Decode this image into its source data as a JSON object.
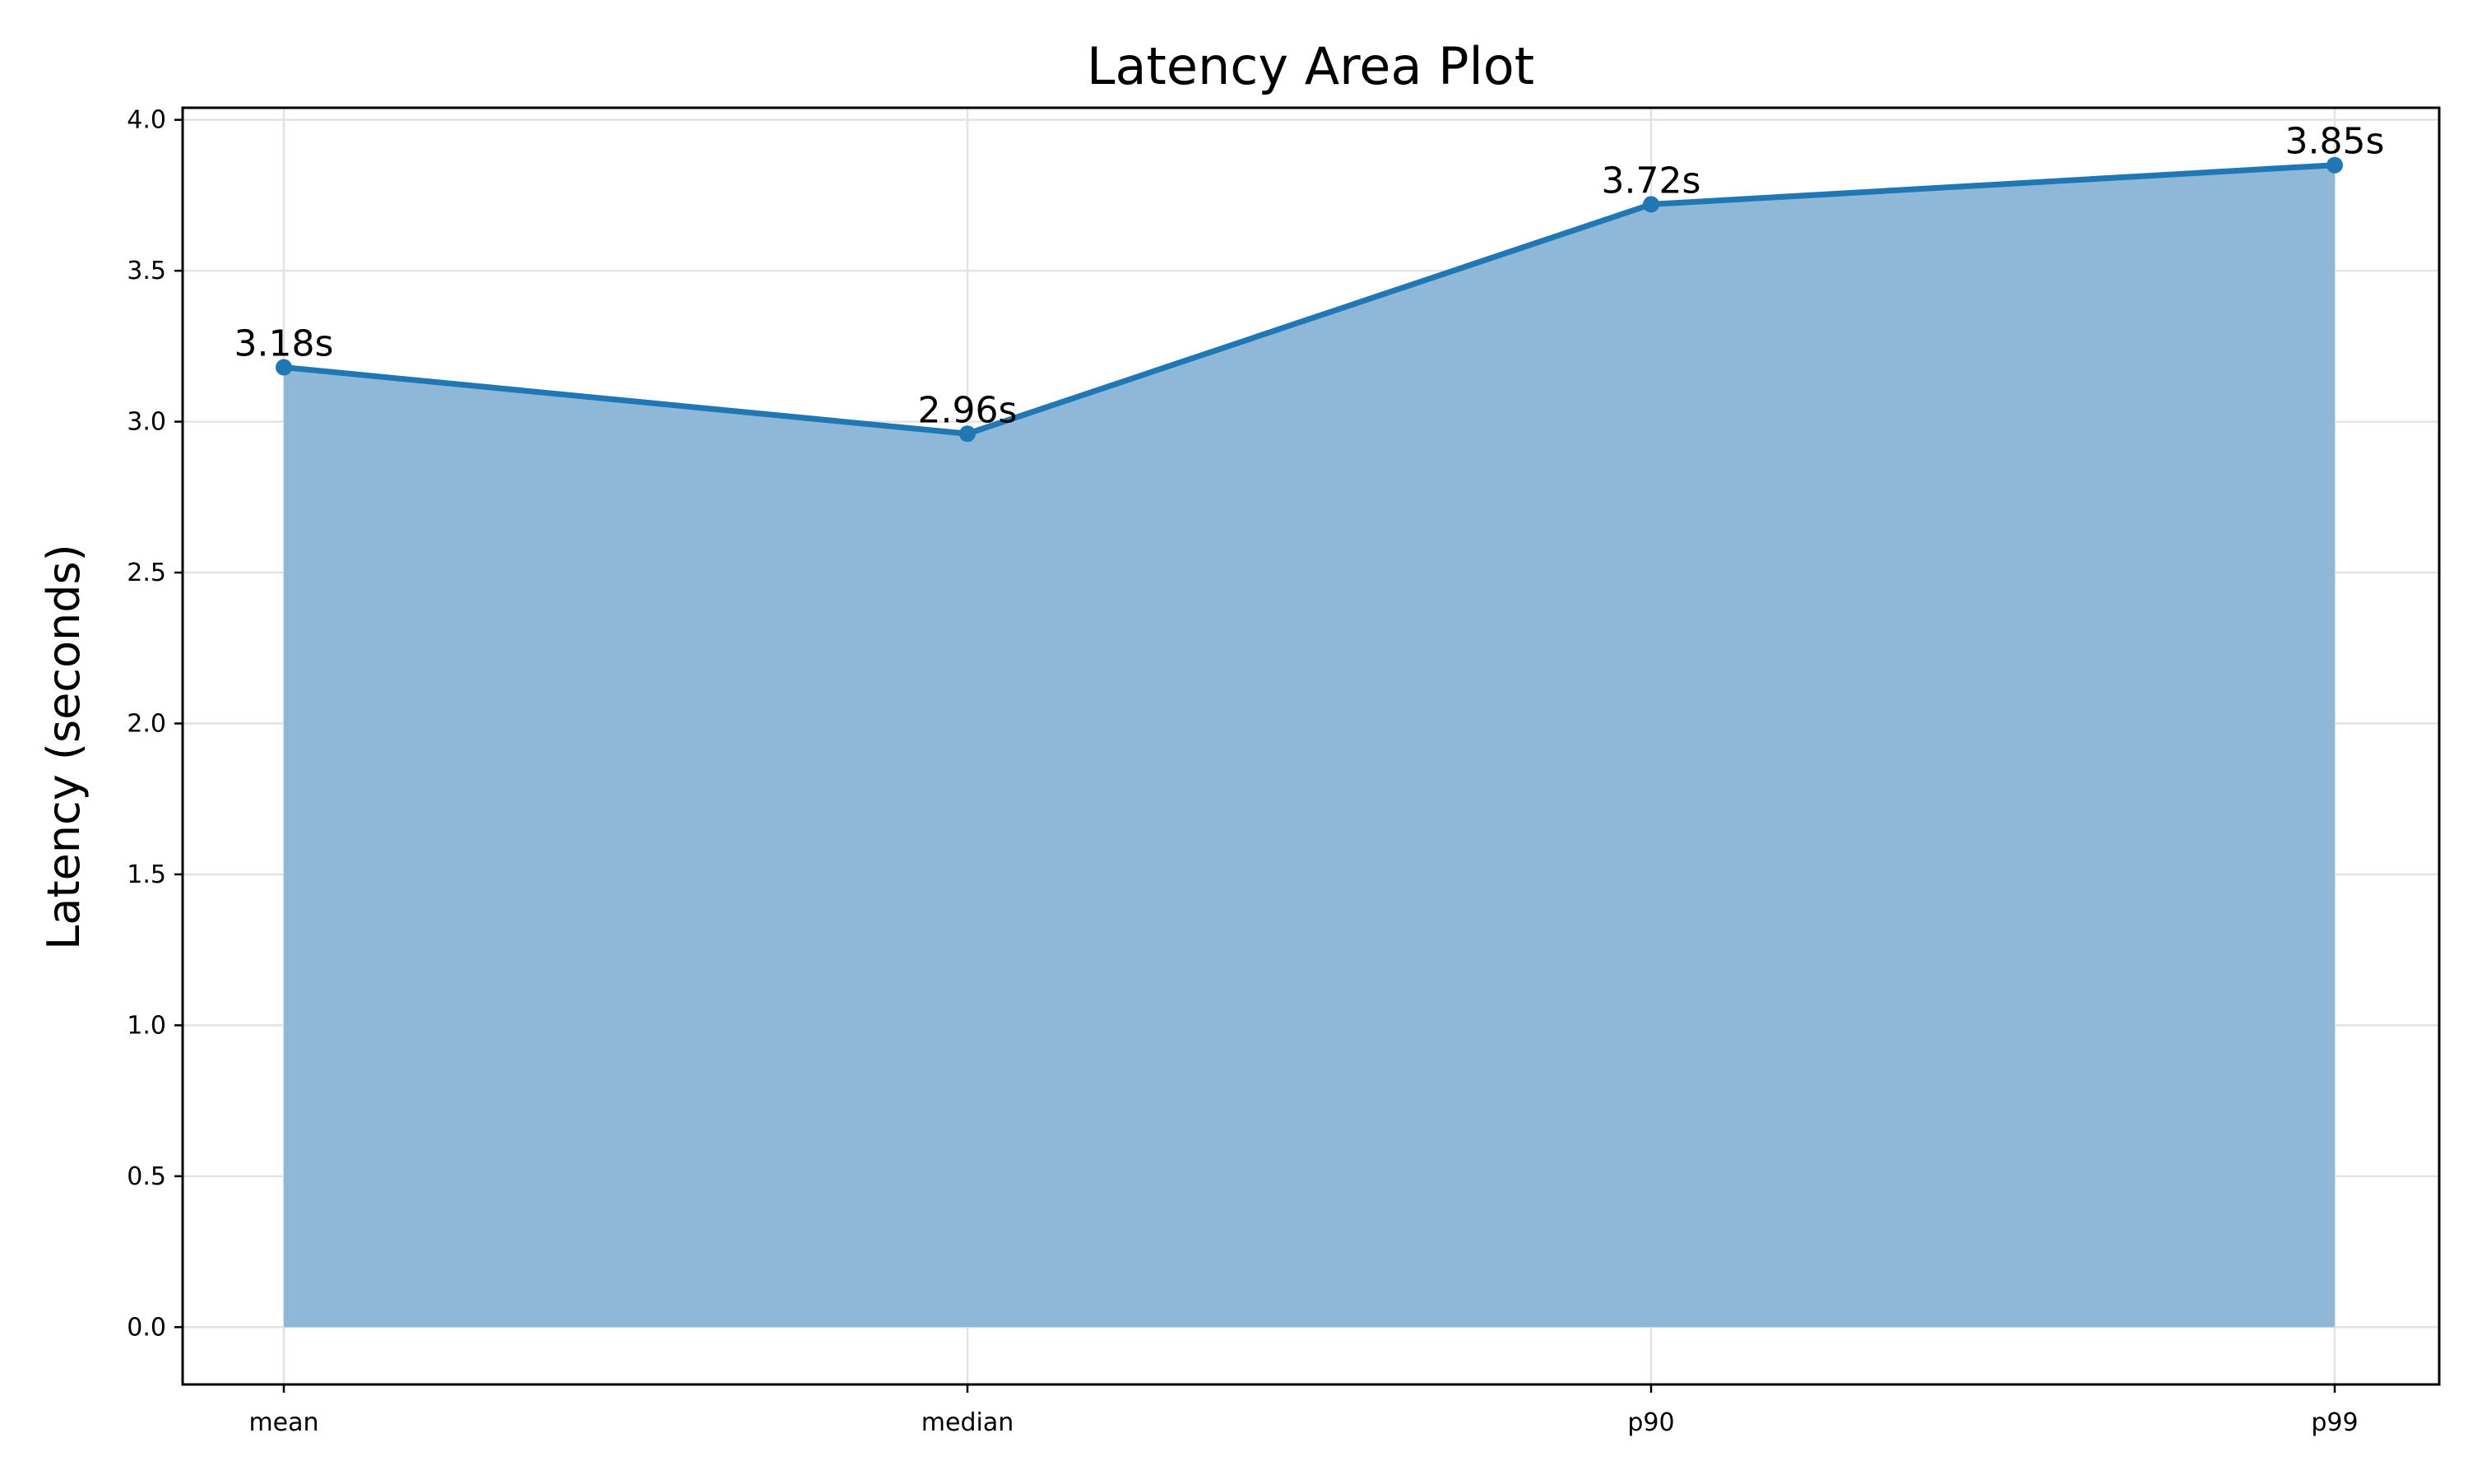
{
  "chart_data": {
    "type": "area",
    "title": "Latency Area Plot",
    "xlabel": "",
    "ylabel": "Latency (seconds)",
    "categories": [
      "mean",
      "median",
      "p90",
      "p99"
    ],
    "values": [
      3.18,
      2.96,
      3.72,
      3.85
    ],
    "data_labels": [
      "3.18s",
      "2.96s",
      "3.72s",
      "3.85s"
    ],
    "ylim": [
      -0.19,
      4.04
    ],
    "yticks": [
      0.0,
      0.5,
      1.0,
      1.5,
      2.0,
      2.5,
      3.0,
      3.5,
      4.0
    ],
    "ytick_labels": [
      "0.0",
      "0.5",
      "1.0",
      "1.5",
      "2.0",
      "2.5",
      "3.0",
      "3.5",
      "4.0"
    ],
    "grid": true,
    "legend": "none",
    "colors": {
      "line": "#1f77b4",
      "fill": "#8fb8d8",
      "grid": "#e3e3e3"
    }
  }
}
